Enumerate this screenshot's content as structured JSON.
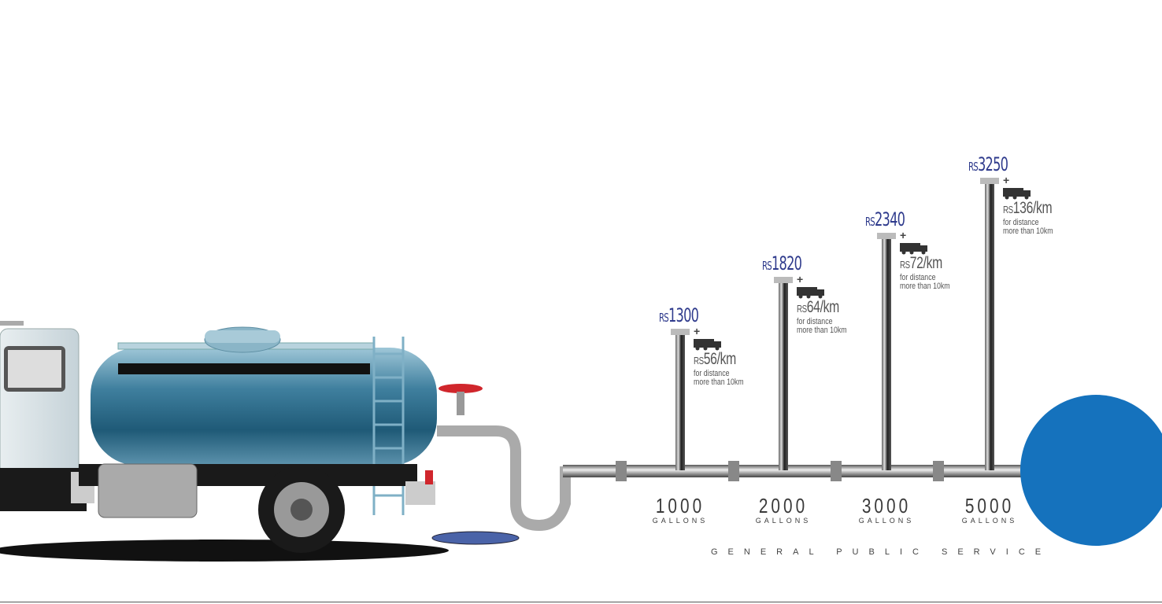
{
  "currency_label": "RS",
  "tiers": [
    {
      "price": "1300",
      "rate": "56/km",
      "note_line1": "for distance",
      "note_line2": "more than 10km",
      "capacity": "1000",
      "unit": "GALLONS"
    },
    {
      "price": "1820",
      "rate": "64/km",
      "note_line1": "for distance",
      "note_line2": "more than 10km",
      "capacity": "2000",
      "unit": "GALLONS"
    },
    {
      "price": "2340",
      "rate": "72/km",
      "note_line1": "for distance",
      "note_line2": "more than 10km",
      "capacity": "3000",
      "unit": "GALLONS"
    },
    {
      "price": "3250",
      "rate": "136/km",
      "note_line1": "for distance",
      "note_line2": "more than 10km",
      "capacity": "5000",
      "unit": "GALLONS"
    }
  ],
  "plus_sign": "+",
  "footer": "GENERAL PUBLIC SERVICE",
  "colors": {
    "price": "#2e3a8c",
    "circle": "#1572bd",
    "tank": "#2f6f8f",
    "valve": "#d0262c"
  }
}
